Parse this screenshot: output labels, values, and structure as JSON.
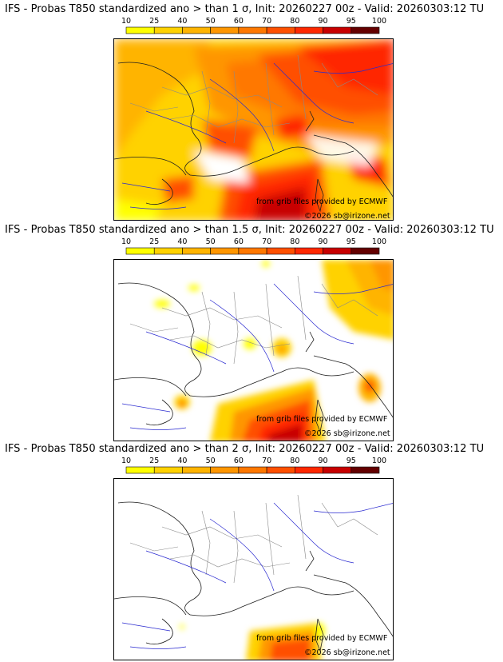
{
  "colorbar": {
    "ticks": [
      "10",
      "25",
      "40",
      "50",
      "60",
      "70",
      "80",
      "90",
      "95",
      "100"
    ],
    "colors": [
      "#ffff00",
      "#ffd200",
      "#ffb400",
      "#ff9600",
      "#ff7800",
      "#ff5000",
      "#ff2800",
      "#c80000",
      "#640000"
    ]
  },
  "panels": [
    {
      "title": "IFS - Probas T850  standardized ano > than 1 σ, Init: 20260227 00z - Valid: 20260303:12 TU",
      "credit_source": "from grib files provided by ECMWF",
      "credit_copyright": "©2026 sb@irizone.net"
    },
    {
      "title": "IFS - Probas T850  standardized ano > than 1.5 σ, Init: 20260227 00z - Valid: 20260303:12 TU",
      "credit_source": "from grib files provided by ECMWF",
      "credit_copyright": "©2026 sb@irizone.net"
    },
    {
      "title": "IFS - Probas T850  standardized ano > than 2 σ, Init: 20260227 00z - Valid: 20260303:12 TU",
      "credit_source": "from grib files provided by ECMWF",
      "credit_copyright": "©2026 sb@irizone.net"
    }
  ]
}
